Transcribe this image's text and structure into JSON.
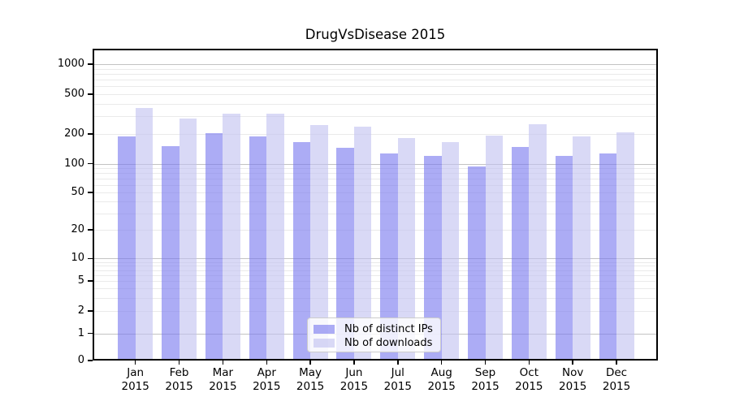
{
  "chart_data": {
    "type": "bar",
    "title": "DrugVsDisease 2015",
    "yscale": "symlog",
    "ylim": [
      0,
      1430
    ],
    "grid": "major and minor horizontal gridlines",
    "legend_position": "lower center",
    "y_ticks": [
      0,
      1,
      2,
      5,
      10,
      20,
      50,
      100,
      200,
      500,
      1000
    ],
    "x_tick_year": "2015",
    "x_tick_months": [
      "Jan",
      "Feb",
      "Mar",
      "Apr",
      "May",
      "Jun",
      "Jul",
      "Aug",
      "Sep",
      "Oct",
      "Nov",
      "Dec"
    ],
    "categories": [
      "Jan 2015",
      "Feb 2015",
      "Mar 2015",
      "Apr 2015",
      "May 2015",
      "Jun 2015",
      "Jul 2015",
      "Aug 2015",
      "Sep 2015",
      "Oct 2015",
      "Nov 2015",
      "Dec 2015"
    ],
    "series": [
      {
        "name": "Nb of distinct IPs",
        "color": "#7575ee",
        "alpha": 0.6,
        "values": [
          187,
          150,
          202,
          189,
          164,
          145,
          128,
          121,
          94,
          147,
          121,
          128
        ]
      },
      {
        "name": "Nb of downloads",
        "color": "#c0c0f0",
        "alpha": 0.6,
        "values": [
          360,
          286,
          321,
          318,
          243,
          237,
          181,
          165,
          193,
          248,
          189,
          208
        ]
      }
    ]
  }
}
